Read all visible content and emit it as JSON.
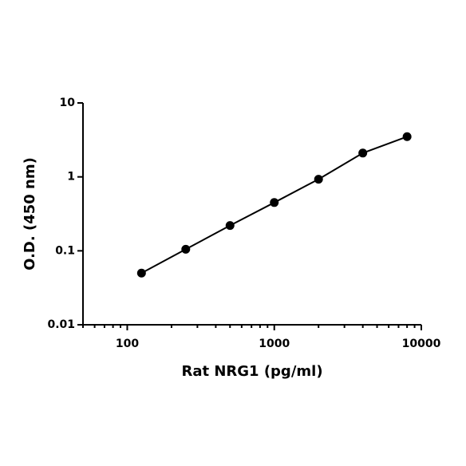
{
  "chart_data": {
    "type": "line",
    "x": [
      125,
      250,
      500,
      1000,
      2000,
      4000,
      8000
    ],
    "series": [
      {
        "name": "Rat NRG1",
        "color": "#000000",
        "values": [
          0.05,
          0.105,
          0.22,
          0.45,
          0.93,
          2.1,
          3.5
        ]
      }
    ],
    "xlabel": "Rat NRG1 (pg/ml)",
    "ylabel": "O.D. (450 nm)",
    "xscale": "log",
    "yscale": "log",
    "xlim": [
      50,
      10000
    ],
    "ylim": [
      0.01,
      10
    ],
    "xticks": [
      100,
      1000,
      10000
    ],
    "yticks": [
      0.01,
      0.1,
      1,
      10
    ],
    "xminorticks": [
      50,
      60,
      70,
      80,
      90,
      200,
      300,
      400,
      500,
      600,
      700,
      800,
      900,
      2000,
      3000,
      4000,
      5000,
      6000,
      7000,
      8000,
      9000
    ],
    "grid": false,
    "markers": true
  }
}
